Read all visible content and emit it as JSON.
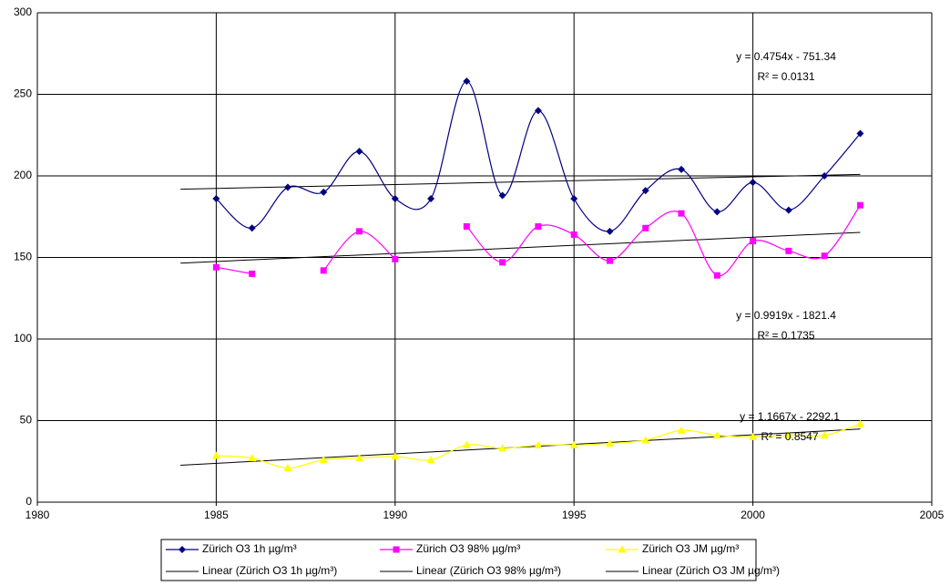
{
  "chart_data": {
    "type": "line",
    "x": [
      1985,
      1986,
      1987,
      1988,
      1989,
      1990,
      1991,
      1992,
      1993,
      1994,
      1995,
      1996,
      1997,
      1998,
      1999,
      2000,
      2001,
      2002,
      2003
    ],
    "xlim": [
      1980,
      2005
    ],
    "xticks": [
      1980,
      1985,
      1990,
      1995,
      2000,
      2005
    ],
    "ylim": [
      0,
      300
    ],
    "yticks": [
      0,
      50,
      100,
      150,
      200,
      250,
      300
    ],
    "grid": true,
    "legend": "bottom",
    "series": [
      {
        "name": "Zürich O3 1h µg/m³",
        "color": "#000080",
        "marker": "diamond",
        "values": [
          186,
          168,
          193,
          190,
          215,
          186,
          186,
          258,
          188,
          240,
          186,
          166,
          191,
          204,
          178,
          196,
          179,
          200,
          226
        ]
      },
      {
        "name": "Zürich O3 98% µg/m³",
        "color": "#ff00ff",
        "marker": "square",
        "values": [
          144,
          140,
          null,
          142,
          166,
          149,
          null,
          169,
          147,
          169,
          164,
          148,
          168,
          177,
          139,
          160,
          154,
          151,
          182
        ]
      },
      {
        "name": "Zürich O3 JM µg/m³",
        "color": "#ffff00",
        "marker": "triangle",
        "values": [
          28.5,
          27,
          21,
          26,
          27,
          28,
          26,
          35,
          33,
          35,
          35,
          36,
          38,
          44,
          41,
          40,
          41,
          41,
          48
        ]
      }
    ],
    "trendlines": [
      {
        "name": "Linear (Zürich O3 1h µg/m³)",
        "color": "#000000",
        "x": [
          1984,
          2003
        ],
        "values": [
          191.85,
          200.9
        ],
        "equation": "y = 0.4754x - 751.34",
        "r2": "R² = 0.0131"
      },
      {
        "name": "Linear (Zürich O3 98% µg/m³)",
        "color": "#000000",
        "x": [
          1984,
          2003
        ],
        "values": [
          146.53,
          165.38
        ],
        "equation": "y = 0.9919x - 1821.4",
        "r2": "R² = 0.1735"
      },
      {
        "name": "Linear (Zürich O3 JM µg/m³)",
        "color": "#000000",
        "x": [
          1984,
          2003
        ],
        "values": [
          22.63,
          44.8
        ],
        "equation": "y = 1.1667x - 2292.1",
        "r2": "R² = 0.8547"
      }
    ]
  }
}
